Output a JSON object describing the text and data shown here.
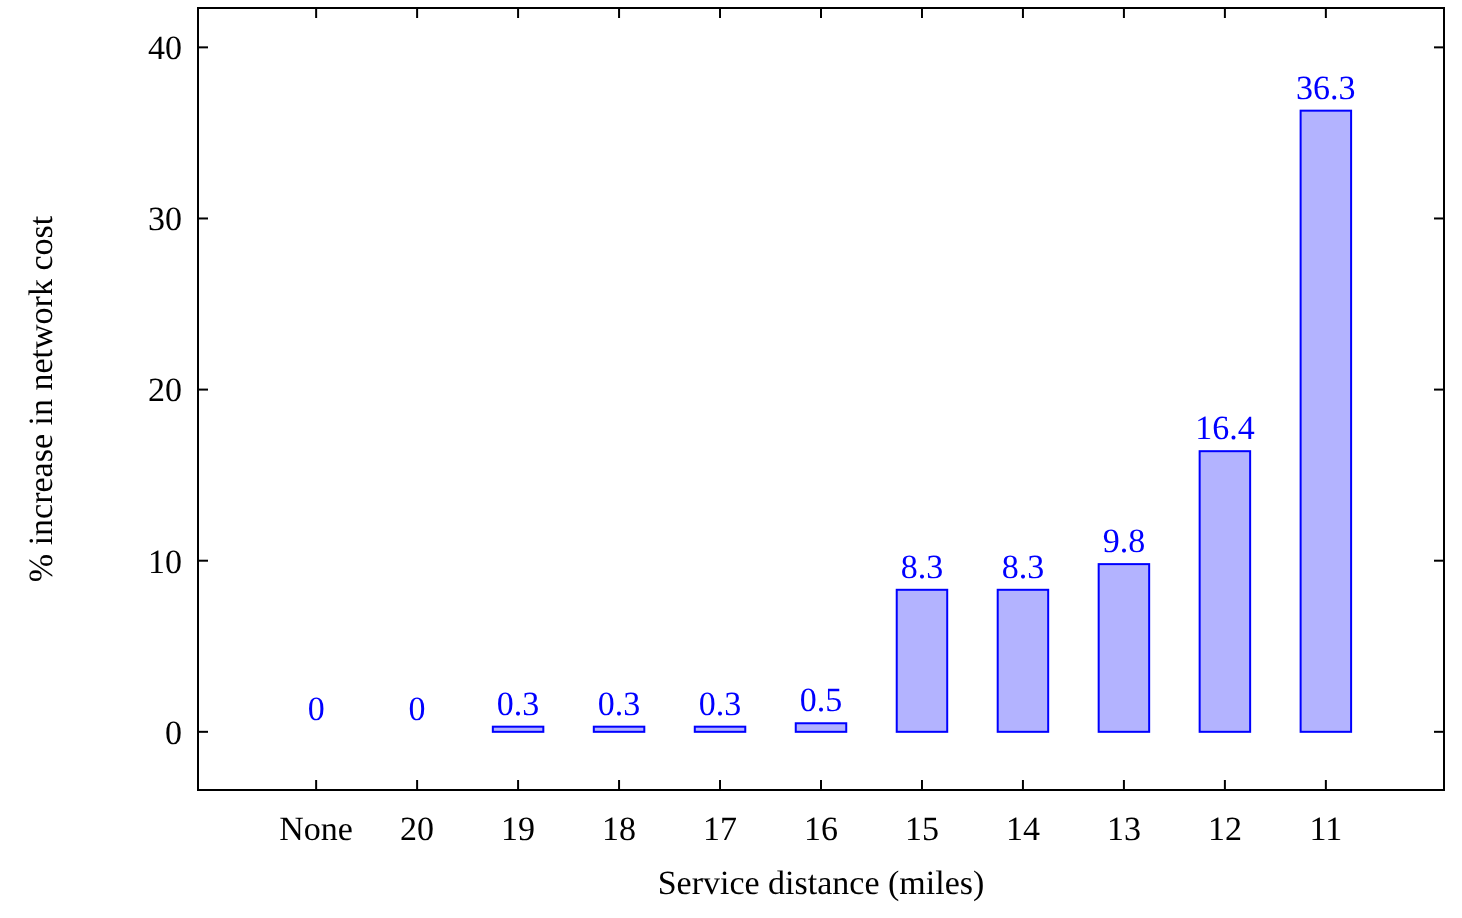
{
  "chart_data": {
    "type": "bar",
    "xlabel": "Service distance (miles)",
    "ylabel": "% increase in network cost",
    "categories": [
      "None",
      "20",
      "19",
      "18",
      "17",
      "16",
      "15",
      "14",
      "13",
      "12",
      "11"
    ],
    "values": [
      0,
      0,
      0.3,
      0.3,
      0.3,
      0.5,
      8.3,
      8.3,
      9.8,
      16.4,
      36.3
    ],
    "color": "#b3b3ff",
    "data_labels": true,
    "ylim": [
      -3.4,
      42.3
    ],
    "yticks": [
      0,
      10,
      20,
      30,
      40
    ],
    "grid": false
  }
}
